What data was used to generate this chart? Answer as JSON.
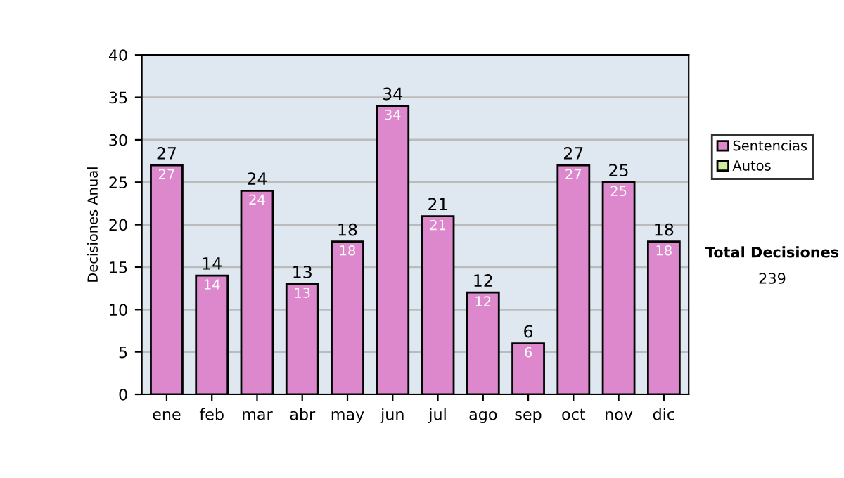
{
  "chart_data": {
    "type": "bar",
    "stacked": true,
    "ylabel": "Decisiones Anual",
    "categories": [
      "ene",
      "feb",
      "mar",
      "abr",
      "may",
      "jun",
      "jul",
      "ago",
      "sep",
      "oct",
      "nov",
      "dic"
    ],
    "series": [
      {
        "name": "Sentencias",
        "color": "#dd88cc",
        "values": [
          27,
          14,
          24,
          13,
          18,
          34,
          21,
          12,
          6,
          27,
          25,
          18
        ],
        "value_labels": [
          "27",
          "14",
          "24",
          "13",
          "18",
          "34",
          "21",
          "12",
          "6",
          "27",
          "25",
          "18"
        ]
      },
      {
        "name": "Autos",
        "color": "#ccee99",
        "values": [
          0,
          0,
          0,
          0,
          0,
          0,
          0,
          0,
          0,
          0,
          0,
          0
        ]
      }
    ],
    "totals": [
      "27",
      "14",
      "24",
      "13",
      "18",
      "34",
      "21",
      "12",
      "6",
      "27",
      "25",
      "18"
    ],
    "ylim": [
      0,
      40
    ],
    "yticks": [
      0,
      5,
      10,
      15,
      20,
      25,
      30,
      35,
      40
    ],
    "grid": "y",
    "legend": "right",
    "annotations": [
      "Total Decisiones",
      "239"
    ]
  }
}
